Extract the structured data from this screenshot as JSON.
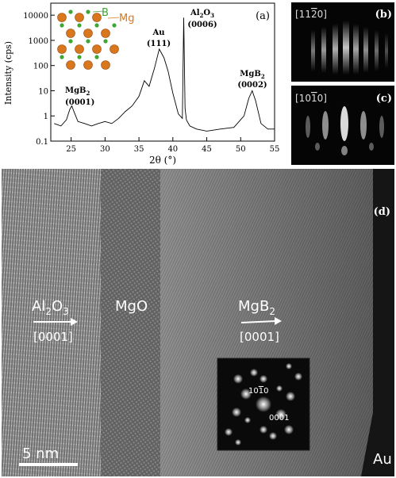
{
  "panel_a": {
    "label": "(a)",
    "ylabel": "Intensity (cps)",
    "xlabel": "2θ (°)",
    "y_ticks": [
      "10000",
      "1000",
      "100",
      "10",
      "1",
      "0.1"
    ],
    "x_ticks": [
      "25",
      "30",
      "35",
      "40",
      "45",
      "50",
      "55"
    ],
    "inset_labels": {
      "b": "B",
      "mg": "Mg"
    },
    "peaks": {
      "mgb2_0001_name": "MgB",
      "mgb2_0001_sub": "2",
      "mgb2_0001_idx": "(0001)",
      "au_name": "Au",
      "au_idx": "(111)",
      "al2o3_name_a": "Al",
      "al2o3_sub_a": "2",
      "al2o3_name_b": "O",
      "al2o3_sub_b": "3",
      "al2o3_idx": "(0006)",
      "mgb2_0002_name": "MgB",
      "mgb2_0002_sub": "2",
      "mgb2_0002_idx": "(0002)"
    },
    "colors": {
      "mg_atom": "#d9771e",
      "b_atom": "#3fa535",
      "mg_label": "#d9771e",
      "b_label": "#3fa535"
    }
  },
  "panel_b": {
    "label": "(b)",
    "direction": "[11",
    "direction_bar": "2",
    "direction_end": "0]"
  },
  "panel_c": {
    "label": "(c)",
    "direction": "[10",
    "direction_bar": "1",
    "direction_end": "0]"
  },
  "panel_d": {
    "label": "(d)",
    "al2o3_a": "Al",
    "al2o3_sub1": "2",
    "al2o3_b": "O",
    "al2o3_sub2": "3",
    "al2o3_axis": "[0001]",
    "mgo": "MgO",
    "mgb2": "MgB",
    "mgb2_sub": "2",
    "mgb2_axis": "[0001]",
    "fft_spot1_a": "10",
    "fft_spot1_bar": "1",
    "fft_spot1_b": "0",
    "fft_spot2": "0001",
    "scalebar": "5 nm",
    "au": "Au"
  },
  "chart_data": {
    "type": "line",
    "title": "",
    "xlabel": "2θ (°)",
    "ylabel": "Intensity (cps)",
    "xlim": [
      22,
      55
    ],
    "ylim": [
      0.1,
      30000
    ],
    "yscale": "log",
    "series": [
      {
        "x": [
          22.5,
          23.5,
          24.3,
          24.8,
          25.1,
          25.4,
          26,
          27,
          28,
          29,
          30,
          31,
          32,
          33,
          34,
          35,
          35.8,
          36.5,
          37.3,
          38,
          38.7,
          39.3,
          40,
          40.8,
          41.4,
          41.6,
          41.8,
          42,
          42.5,
          43.5,
          45,
          47,
          49,
          50.5,
          51.2,
          51.7,
          52.2,
          53,
          54,
          55
        ],
        "y": [
          0.5,
          0.4,
          0.7,
          1.8,
          2.5,
          1.5,
          0.6,
          0.5,
          0.4,
          0.5,
          0.6,
          0.5,
          0.8,
          1.5,
          2.5,
          6,
          25,
          15,
          80,
          450,
          200,
          60,
          8,
          1.2,
          0.8,
          8000,
          2.0,
          0.7,
          0.4,
          0.3,
          0.25,
          0.3,
          0.35,
          1,
          5,
          10,
          4,
          0.5,
          0.3,
          0.3
        ]
      }
    ],
    "annotations": [
      "MgB2 (0001)",
      "Au (111)",
      "Al2O3 (0006)",
      "MgB2 (0002)"
    ]
  }
}
